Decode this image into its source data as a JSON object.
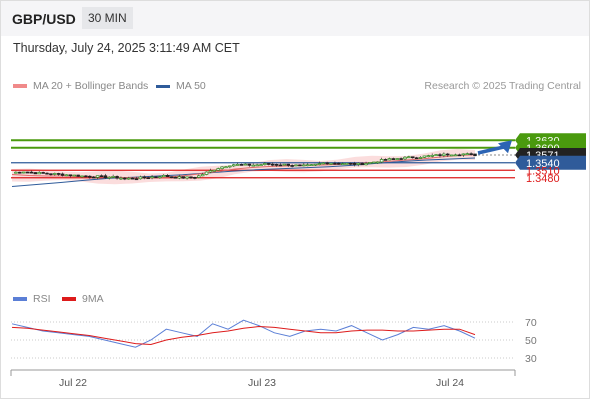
{
  "header": {
    "pair": "GBP/USD",
    "timeframe": "30 MIN"
  },
  "timestamp": "Thursday, July 24, 2025 3:11:49 AM CET",
  "legend": {
    "ma20": {
      "label": "MA 20 + Bollinger Bands",
      "color": "#f08a8a"
    },
    "ma50": {
      "label": "MA 50",
      "color": "#2f5b9a"
    },
    "credit": "Research © 2025 Trading Central"
  },
  "rsi_legend": {
    "rsi": {
      "label": "RSI",
      "color": "#5b7fd6"
    },
    "ma9": {
      "label": "9MA",
      "color": "#dd1b1b"
    }
  },
  "chart_data": [
    {
      "type": "candlestick",
      "x_labels": [
        "Jul 22",
        "Jul 23",
        "Jul 24"
      ],
      "levels": [
        {
          "value": 1.363,
          "label": "1.3630",
          "kind": "resistance",
          "color": "#4a9a0e"
        },
        {
          "value": 1.36,
          "label": "1.3600",
          "kind": "resistance",
          "color": "#4a9a0e"
        },
        {
          "value": 1.3571,
          "label": "1.3571",
          "kind": "last",
          "color": "#222222"
        },
        {
          "value": 1.354,
          "label": "1.3540",
          "kind": "pivot",
          "color": "#2f5b9a"
        },
        {
          "value": 1.351,
          "label": "1.3510",
          "kind": "support",
          "color": "#dd1b1b"
        },
        {
          "value": 1.348,
          "label": "1.3480",
          "kind": "support",
          "color": "#dd1b1b"
        }
      ],
      "close_path": [
        1.35,
        1.3505,
        1.3499,
        1.3497,
        1.3494,
        1.3491,
        1.3487,
        1.3485,
        1.3484,
        1.3481,
        1.3477,
        1.3479,
        1.3483,
        1.3488,
        1.3482,
        1.348,
        1.3484,
        1.3505,
        1.3522,
        1.3533,
        1.3531,
        1.3531,
        1.3535,
        1.3533,
        1.3532,
        1.3527,
        1.353,
        1.354,
        1.3539,
        1.3536,
        1.3534,
        1.3541,
        1.355,
        1.3556,
        1.356,
        1.3563,
        1.3567,
        1.3571,
        1.3575,
        1.3575,
        1.3571
      ],
      "ma20": [
        1.3493,
        1.3489,
        1.3487,
        1.3487,
        1.3485,
        1.3483,
        1.3482,
        1.348,
        1.348,
        1.3482,
        1.3488,
        1.3496,
        1.3505,
        1.3515,
        1.3521,
        1.3525,
        1.3527,
        1.353,
        1.3531,
        1.3533,
        1.3537,
        1.3541,
        1.3546,
        1.3551,
        1.3556,
        1.3563,
        1.3569,
        1.3572
      ],
      "ma50": [
        1.3445,
        1.3453,
        1.3461,
        1.347,
        1.3478,
        1.3482,
        1.3487,
        1.3492,
        1.3499,
        1.3506,
        1.3512,
        1.3516,
        1.352,
        1.3524,
        1.353,
        1.3538,
        1.3545,
        1.3551,
        1.3555,
        1.3559
      ],
      "arrow": {
        "from": 1.3571,
        "to": 1.363,
        "direction": "up"
      }
    },
    {
      "type": "line",
      "name": "RSI panel",
      "y_ticks": [
        "70",
        "50",
        "30"
      ],
      "rsi": [
        68,
        64,
        60,
        58,
        56,
        54,
        50,
        46,
        42,
        50,
        62,
        58,
        54,
        68,
        62,
        72,
        66,
        58,
        54,
        60,
        62,
        60,
        66,
        58,
        50,
        56,
        64,
        62,
        66,
        60,
        52
      ],
      "ma9": [
        64,
        63,
        61,
        59,
        57,
        55,
        52,
        49,
        46,
        45,
        50,
        53,
        55,
        58,
        60,
        63,
        65,
        64,
        62,
        60,
        58,
        58,
        60,
        61,
        61,
        60,
        60,
        61,
        62,
        62,
        56
      ]
    }
  ]
}
